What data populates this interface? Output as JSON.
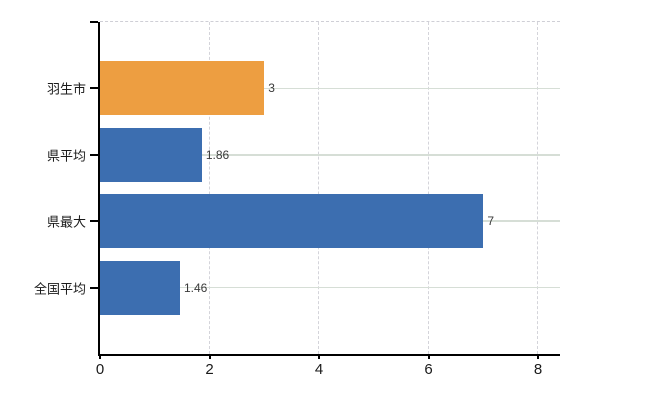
{
  "chart_data": {
    "type": "bar",
    "orientation": "horizontal",
    "title": "",
    "xlabel": "",
    "ylabel": "",
    "categories": [
      "羽生市",
      "県平均",
      "県最大",
      "全国平均"
    ],
    "values": [
      3,
      1.86,
      7,
      1.46
    ],
    "value_labels": [
      "3",
      "1.86",
      "7",
      "1.46"
    ],
    "bar_colors": [
      "#ED9E41",
      "#3C6EB0",
      "#3C6EB0",
      "#3C6EB0"
    ],
    "highlight_index": 0,
    "x_ticks": [
      "0",
      "2",
      "4",
      "6",
      "8"
    ],
    "xlim": [
      0,
      8.4
    ],
    "grid": true,
    "legend": false
  },
  "colors": {
    "bar_orange": "#ED9E41",
    "bar_blue": "#3C6EB0",
    "axis": "#000000",
    "grid_horizontal": "#D6DED6",
    "grid_vertical": "#D4D4DA",
    "plot_top_border": "#CFCFD6",
    "value_label": "#3A3A3A",
    "tick_label": "#1A1A1A",
    "background": "#FFFFFF"
  }
}
